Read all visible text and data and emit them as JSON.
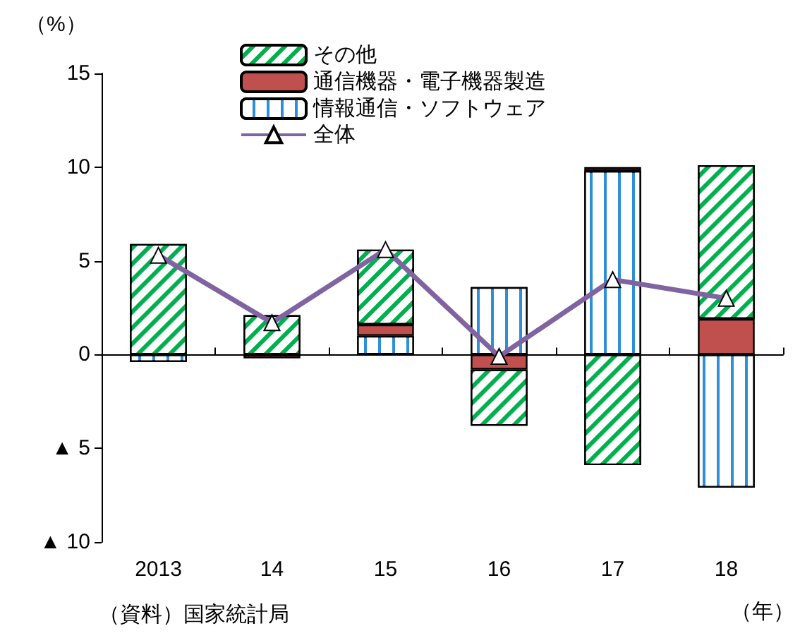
{
  "chart_data": {
    "type": "bar",
    "stacked": true,
    "categories": [
      "2013",
      "14",
      "15",
      "16",
      "17",
      "18"
    ],
    "ylabel": "（%）",
    "xlabel": "（年）",
    "ylim": [
      -10,
      15
    ],
    "yticks": [
      {
        "value": -10,
        "label": "▲ 10"
      },
      {
        "value": -5,
        "label": "▲ 5"
      },
      0,
      5,
      10,
      15
    ],
    "series": [
      {
        "name": "情報通信・ソフトウェア",
        "color": "#2e8fd8",
        "values": [
          -0.4,
          0,
          1.0,
          3.6,
          9.8,
          -7.1
        ]
      },
      {
        "name": "通信機器・電子機器製造",
        "color": "#c0504d",
        "values": [
          null,
          -0.2,
          0.6,
          -0.8,
          0.2,
          1.9
        ]
      },
      {
        "name": "その他",
        "color": "#00b050",
        "values": [
          5.9,
          2.1,
          4.0,
          -3.0,
          -5.9,
          8.2
        ]
      },
      {
        "name": "全体",
        "type": "line",
        "color": "#8064a2",
        "marker": "triangle",
        "values": [
          5.3,
          1.7,
          5.6,
          -0.1,
          4.0,
          3.0
        ]
      }
    ],
    "legend": "top",
    "annotations": [
      "（資料）国家統計局"
    ]
  }
}
